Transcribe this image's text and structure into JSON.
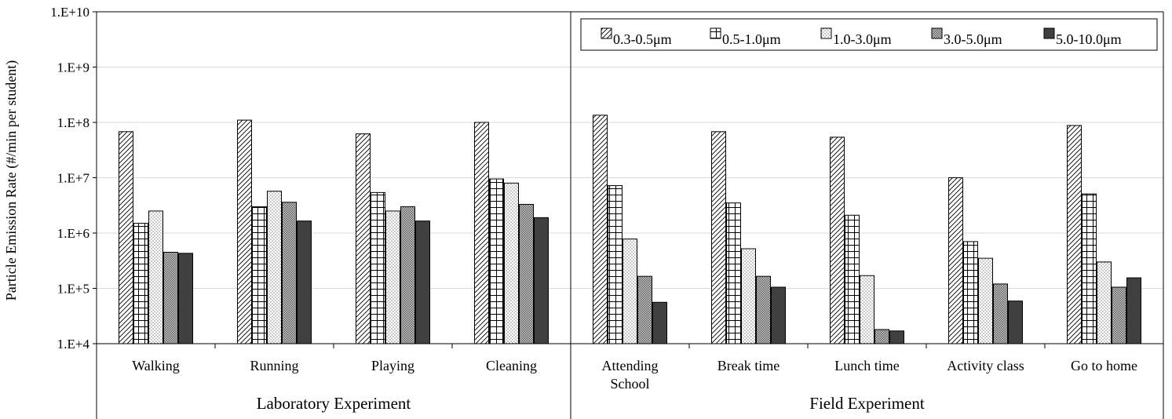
{
  "chart_data": {
    "type": "bar",
    "ylabel": "Particle Emission Rate (#/min per student)",
    "yscale": "log",
    "ylim": [
      10000,
      10000000000
    ],
    "yticks": [
      "1.E+4",
      "1.E+5",
      "1.E+6",
      "1.E+7",
      "1.E+8",
      "1.E+9",
      "1.E+10"
    ],
    "grid": true,
    "legend_position": "top-right",
    "categories": [
      "Walking",
      "Running",
      "Playing",
      "Cleaning",
      "Attending School",
      "Break time",
      "Lunch time",
      "Activity class",
      "Go to home"
    ],
    "groups": [
      {
        "label": "Laboratory Experiment",
        "categories": [
          "Walking",
          "Running",
          "Playing",
          "Cleaning"
        ]
      },
      {
        "label": "Field Experiment",
        "categories": [
          "Attending School",
          "Break time",
          "Lunch time",
          "Activity class",
          "Go to home"
        ]
      }
    ],
    "series": [
      {
        "name": "0.3-0.5μm",
        "pattern": "diagonal",
        "values": [
          68000000,
          110000000,
          62000000,
          100000000,
          135000000,
          68000000,
          54000000,
          10000000,
          88000000
        ]
      },
      {
        "name": "0.5-1.0μm",
        "pattern": "grid",
        "values": [
          1500000,
          3000000,
          5400000,
          9500000,
          7200000,
          3500000,
          2100000,
          700000,
          5100000
        ]
      },
      {
        "name": "1.0-3.0μm",
        "pattern": "dots",
        "values": [
          2500000,
          5700000,
          2500000,
          8000000,
          780000,
          520000,
          170000,
          350000,
          300000
        ]
      },
      {
        "name": "3.0-5.0μm",
        "pattern": "cross",
        "values": [
          450000,
          3600000,
          3000000,
          3300000,
          165000,
          165000,
          18000,
          120000,
          105000
        ]
      },
      {
        "name": "5.0-10.0μm",
        "pattern": "solid",
        "values": [
          430000,
          1650000,
          1650000,
          1900000,
          56000,
          105000,
          17000,
          59000,
          155000
        ]
      }
    ],
    "colors": {
      "bar_stroke": "#000000",
      "solid_fill": "#404040",
      "grid": "#d9d9d9"
    }
  }
}
